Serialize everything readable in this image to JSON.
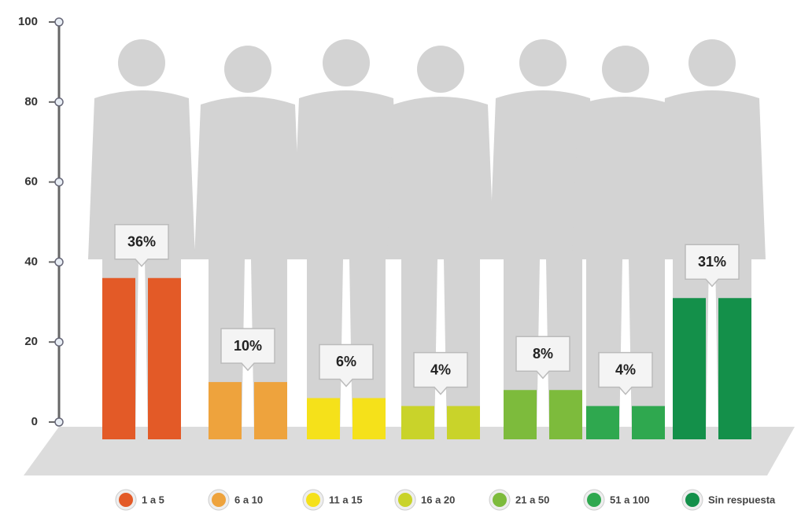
{
  "chart_data": {
    "type": "bar",
    "categories": [
      "1 a 5",
      "6 a 10",
      "11 a 15",
      "16 a 20",
      "21 a 50",
      "51 a 100",
      "Sin respuesta"
    ],
    "values": [
      36,
      10,
      6,
      4,
      8,
      4,
      31
    ],
    "value_labels": [
      "36%",
      "10%",
      "6%",
      "4%",
      "8%",
      "4%",
      "31%"
    ],
    "colors": [
      "#e35a27",
      "#eea33d",
      "#f5e11a",
      "#c9d32a",
      "#7dbb3c",
      "#2fa84f",
      "#14904a"
    ],
    "ylim": [
      0,
      100
    ],
    "yticks": [
      0,
      20,
      40,
      60,
      80,
      100
    ]
  }
}
